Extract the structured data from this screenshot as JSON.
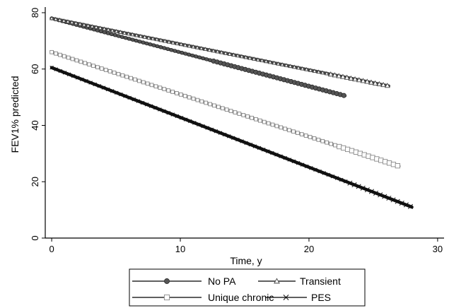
{
  "chart_data": {
    "type": "line",
    "title": "",
    "xlabel": "Time, y",
    "ylabel": "FEV1% predicted",
    "xlim": [
      -0.5,
      30.5
    ],
    "ylim": [
      0,
      82
    ],
    "xticks": [
      0,
      10,
      20,
      30
    ],
    "yticks": [
      0,
      20,
      40,
      60,
      80
    ],
    "grid": false,
    "legend_position": "bottom",
    "series": [
      {
        "name": "No PA",
        "marker": "circle",
        "color": "#555555",
        "x_start": 0,
        "x_end": 22.8,
        "y_start": 78,
        "y_end": 50.5
      },
      {
        "name": "Transient",
        "marker": "triangle",
        "color": "#444444",
        "x_start": 0,
        "x_end": 26.2,
        "y_start": 78,
        "y_end": 54
      },
      {
        "name": "Unique chronic",
        "marker": "square",
        "color": "#888888",
        "x_start": 0,
        "x_end": 27,
        "y_start": 66,
        "y_end": 25.5
      },
      {
        "name": "PES",
        "marker": "x",
        "color": "#111111",
        "x_start": 0,
        "x_end": 28,
        "y_start": 60.5,
        "y_end": 11
      }
    ]
  }
}
